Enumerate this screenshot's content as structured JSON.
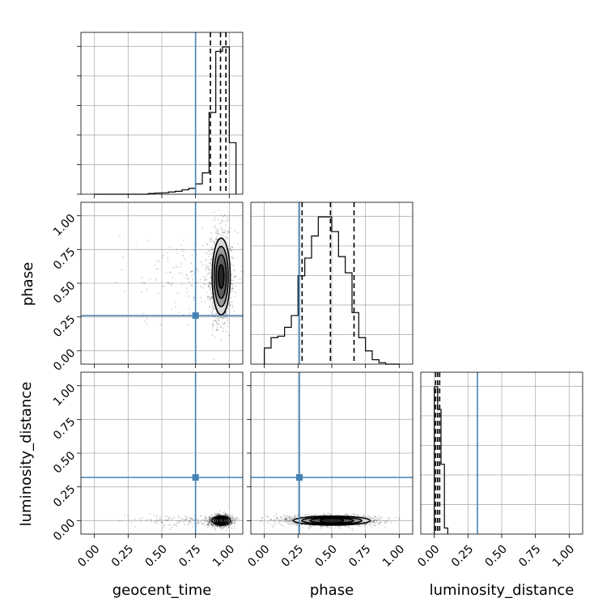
{
  "chart_data": {
    "type": "corner",
    "parameters": [
      "geocent_time",
      "phase",
      "luminosity_distance"
    ],
    "axis_range": [
      -0.1,
      1.1
    ],
    "tick_labels": [
      "0.00",
      "0.25",
      "0.50",
      "0.75",
      "1.00"
    ],
    "grid": true,
    "colors": {
      "truth": "#4682b4",
      "hist": "#000000",
      "points": "#000000",
      "grid": "#b0b0b0"
    },
    "truth_values": {
      "geocent_time": 0.75,
      "phase": 0.26,
      "luminosity_distance": 0.32
    },
    "quantiles": {
      "geocent_time": [
        0.86,
        0.935,
        0.975
      ],
      "phase": [
        0.28,
        0.49,
        0.665
      ],
      "luminosity_distance": [
        0.01,
        0.025,
        0.04
      ]
    },
    "histograms": {
      "geocent_time": {
        "bin_edges": [
          0.0,
          0.05,
          0.1,
          0.15,
          0.2,
          0.25,
          0.3,
          0.35,
          0.4,
          0.45,
          0.5,
          0.55,
          0.6,
          0.65,
          0.7,
          0.75,
          0.8,
          0.85,
          0.9,
          0.95,
          1.0,
          1.05
        ],
        "counts": [
          0.0,
          0.0,
          0.0,
          0.0,
          0.0,
          0.0,
          0.0,
          0.0,
          0.005,
          0.008,
          0.01,
          0.015,
          0.02,
          0.03,
          0.04,
          0.07,
          0.145,
          0.555,
          0.97,
          1.0,
          0.35
        ]
      },
      "phase": {
        "bin_edges": [
          0.0,
          0.05,
          0.1,
          0.15,
          0.2,
          0.25,
          0.3,
          0.35,
          0.4,
          0.45,
          0.5,
          0.55,
          0.6,
          0.65,
          0.7,
          0.75,
          0.8,
          0.85,
          0.9,
          0.95,
          1.0
        ],
        "counts": [
          0.11,
          0.18,
          0.19,
          0.25,
          0.33,
          0.6,
          0.72,
          0.87,
          1.0,
          1.0,
          0.9,
          0.73,
          0.62,
          0.35,
          0.18,
          0.09,
          0.03,
          0.01,
          0.0,
          0.0
        ]
      },
      "luminosity_distance": {
        "bin_edges": [
          0.0,
          0.025,
          0.05,
          0.075,
          0.1
        ],
        "counts": [
          0.97,
          0.82,
          0.46,
          0.04
        ]
      }
    },
    "scatter": {
      "geocent_time_phase": {
        "x_center": 0.94,
        "x_spread": 0.04,
        "y_center": 0.55,
        "y_spread": 0.17,
        "tail_x_min": 0.1
      },
      "geocent_time_luminosity_distance": {
        "x_center": 0.94,
        "x_spread": 0.04,
        "y_center": 0.0,
        "y_spread": 0.02,
        "tail_x_min": 0.1
      },
      "phase_luminosity_distance": {
        "x_center": 0.5,
        "x_spread": 0.17,
        "y_center": 0.0,
        "y_spread": 0.02,
        "tail_x_min": 0.0
      }
    },
    "contour_levels": [
      0.12,
      0.31,
      0.5,
      0.73
    ]
  }
}
